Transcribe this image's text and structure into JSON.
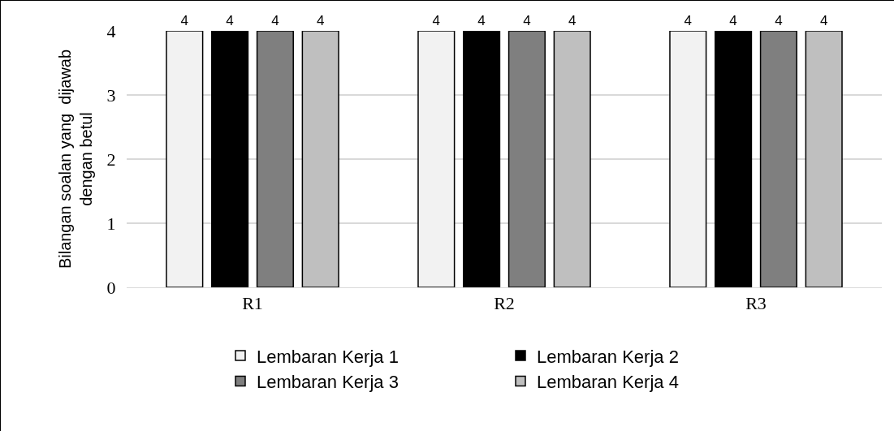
{
  "chart_data": {
    "type": "bar",
    "ylabel": "Bilangan soalan yang  dijawab\ndengan betul",
    "categories": [
      "R1",
      "R2",
      "R3"
    ],
    "series": [
      {
        "name": "Lembaran Kerja 1",
        "color": "#f2f2f2",
        "values": [
          4,
          4,
          4
        ]
      },
      {
        "name": "Lembaran Kerja 2",
        "color": "#000000",
        "values": [
          4,
          4,
          4
        ]
      },
      {
        "name": "Lembaran Kerja 3",
        "color": "#7f7f7f",
        "values": [
          4,
          4,
          4
        ]
      },
      {
        "name": "Lembaran Kerja 4",
        "color": "#bfbfbf",
        "values": [
          4,
          4,
          4
        ]
      }
    ],
    "ylim": [
      0,
      4
    ],
    "yticks": [
      0,
      1,
      2,
      3,
      4
    ],
    "grid": "y",
    "legend": "bottom",
    "data_labels": true
  }
}
